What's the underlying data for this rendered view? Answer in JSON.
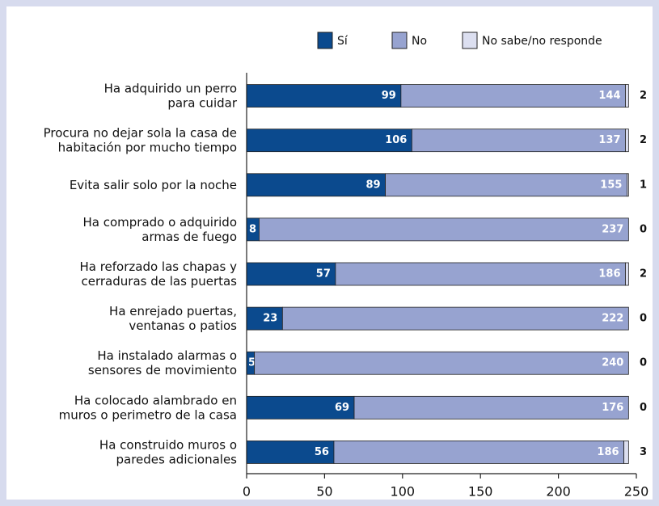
{
  "chart_data": {
    "type": "stacked_barh",
    "categories": [
      [
        "Ha adquirido un perro",
        "para cuidar"
      ],
      [
        "Procura no dejar sola la casa de",
        "habitación por mucho tiempo"
      ],
      [
        "Evita salir solo por la noche"
      ],
      [
        "Ha comprado o adquirido",
        "armas de fuego"
      ],
      [
        "Ha reforzado las chapas y",
        "cerraduras de las puertas"
      ],
      [
        "Ha enrejado puertas,",
        "ventanas o patios"
      ],
      [
        "Ha instalado alarmas o",
        "sensores de movimiento"
      ],
      [
        "Ha colocado alambrado en",
        "muros o perimetro de la casa"
      ],
      [
        "Ha construido muros o",
        "paredes adicionales"
      ]
    ],
    "series": [
      {
        "name": "Sí",
        "color": "#0b4a8e",
        "values": [
          99,
          106,
          89,
          8,
          57,
          23,
          5,
          69,
          56
        ]
      },
      {
        "name": "No",
        "color": "#97a3d0",
        "values": [
          144,
          137,
          155,
          237,
          186,
          222,
          240,
          176,
          186
        ]
      },
      {
        "name": "No sabe/no responde",
        "color": "#dcdff0",
        "values": [
          2,
          2,
          1,
          0,
          2,
          0,
          0,
          0,
          3
        ]
      }
    ],
    "xlim": [
      0,
      250
    ],
    "xticks": [
      0,
      50,
      100,
      150,
      200,
      250
    ]
  }
}
